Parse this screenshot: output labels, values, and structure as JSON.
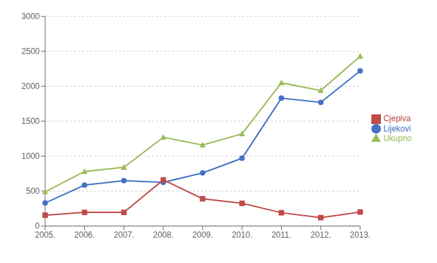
{
  "chart_data": {
    "type": "line",
    "categories": [
      "2005.",
      "2006.",
      "2007.",
      "2008.",
      "2009.",
      "2010.",
      "2011.",
      "2012.",
      "2013."
    ],
    "series": [
      {
        "name": "Lijekovi",
        "color": "#4472C4",
        "marker": "circle",
        "values": [
          330,
          585,
          650,
          625,
          760,
          970,
          1830,
          1770,
          2220
        ]
      },
      {
        "name": "Cjepiva",
        "color": "#BE4B48",
        "marker": "square",
        "values": [
          155,
          195,
          195,
          660,
          390,
          325,
          190,
          120,
          200
        ]
      },
      {
        "name": "Ukupno",
        "color": "#9BBB59",
        "marker": "triangle",
        "values": [
          490,
          780,
          840,
          1270,
          1160,
          1320,
          2050,
          1940,
          2430
        ]
      }
    ],
    "ylim": [
      0,
      3000
    ],
    "yticks": [
      0,
      500,
      1000,
      1500,
      2000,
      2500,
      3000
    ],
    "grid": true,
    "legend": "right"
  }
}
